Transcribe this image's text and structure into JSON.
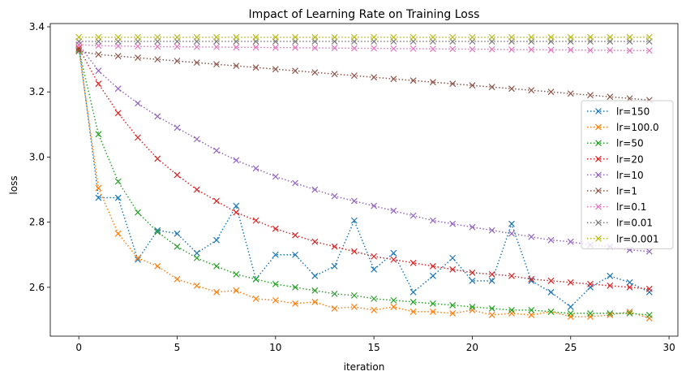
{
  "chart_data": {
    "type": "line",
    "title": "Impact of Learning Rate on Training Loss",
    "xlabel": "iteration",
    "ylabel": "loss",
    "xlim": [
      -1.45,
      30.45
    ],
    "ylim": [
      2.45,
      3.41
    ],
    "xticks": [
      0,
      5,
      10,
      15,
      20,
      25,
      30
    ],
    "yticks": [
      2.6,
      2.8,
      3.0,
      3.2,
      3.4
    ],
    "ytick_labels": [
      "2.6",
      "2.8",
      "3.0",
      "3.2",
      "3.4"
    ],
    "grid": false,
    "legend_position": "center-right",
    "marker": "x",
    "line_style": "dotted",
    "x": [
      0,
      1,
      2,
      3,
      4,
      5,
      6,
      7,
      8,
      9,
      10,
      11,
      12,
      13,
      14,
      15,
      16,
      17,
      18,
      19,
      20,
      21,
      22,
      23,
      24,
      25,
      26,
      27,
      28,
      29
    ],
    "series": [
      {
        "name": "lr=150",
        "color": "#1f77b4",
        "values": [
          3.345,
          2.875,
          2.875,
          2.685,
          2.775,
          2.765,
          2.705,
          2.745,
          2.85,
          2.625,
          2.7,
          2.7,
          2.635,
          2.665,
          2.805,
          2.655,
          2.705,
          2.585,
          2.635,
          2.69,
          2.62,
          2.62,
          2.795,
          2.62,
          2.585,
          2.54,
          2.6,
          2.635,
          2.615,
          2.585
        ]
      },
      {
        "name": "lr=100.0",
        "color": "#ff7f0e",
        "values": [
          3.33,
          2.905,
          2.765,
          2.69,
          2.665,
          2.625,
          2.605,
          2.585,
          2.59,
          2.565,
          2.56,
          2.55,
          2.555,
          2.535,
          2.54,
          2.53,
          2.54,
          2.525,
          2.525,
          2.52,
          2.53,
          2.515,
          2.52,
          2.515,
          2.525,
          2.51,
          2.51,
          2.515,
          2.525,
          2.505
        ]
      },
      {
        "name": "lr=50",
        "color": "#2ca02c",
        "values": [
          3.33,
          3.07,
          2.925,
          2.83,
          2.77,
          2.725,
          2.69,
          2.665,
          2.64,
          2.625,
          2.61,
          2.6,
          2.59,
          2.58,
          2.575,
          2.565,
          2.56,
          2.555,
          2.55,
          2.545,
          2.54,
          2.535,
          2.53,
          2.53,
          2.525,
          2.52,
          2.52,
          2.52,
          2.52,
          2.515
        ]
      },
      {
        "name": "lr=20",
        "color": "#d62728",
        "values": [
          3.335,
          3.225,
          3.135,
          3.06,
          2.995,
          2.945,
          2.9,
          2.865,
          2.83,
          2.805,
          2.78,
          2.76,
          2.74,
          2.725,
          2.71,
          2.695,
          2.685,
          2.675,
          2.665,
          2.655,
          2.645,
          2.64,
          2.635,
          2.625,
          2.62,
          2.615,
          2.61,
          2.605,
          2.6,
          2.595
        ]
      },
      {
        "name": "lr=10",
        "color": "#9467bd",
        "values": [
          3.345,
          3.265,
          3.21,
          3.165,
          3.125,
          3.09,
          3.055,
          3.02,
          2.99,
          2.965,
          2.94,
          2.92,
          2.9,
          2.88,
          2.865,
          2.85,
          2.835,
          2.82,
          2.805,
          2.795,
          2.785,
          2.775,
          2.765,
          2.755,
          2.745,
          2.74,
          2.73,
          2.725,
          2.715,
          2.71
        ]
      },
      {
        "name": "lr=1",
        "color": "#8c564b",
        "values": [
          3.325,
          3.315,
          3.31,
          3.305,
          3.3,
          3.295,
          3.29,
          3.285,
          3.28,
          3.275,
          3.27,
          3.265,
          3.26,
          3.255,
          3.25,
          3.245,
          3.24,
          3.235,
          3.23,
          3.225,
          3.22,
          3.215,
          3.21,
          3.205,
          3.2,
          3.195,
          3.19,
          3.185,
          3.18,
          3.175
        ]
      },
      {
        "name": "lr=0.1",
        "color": "#e377c2",
        "values": [
          3.345,
          3.342,
          3.341,
          3.34,
          3.339,
          3.339,
          3.338,
          3.338,
          3.337,
          3.337,
          3.336,
          3.336,
          3.335,
          3.335,
          3.334,
          3.334,
          3.333,
          3.333,
          3.332,
          3.332,
          3.331,
          3.331,
          3.33,
          3.33,
          3.329,
          3.329,
          3.328,
          3.328,
          3.327,
          3.327
        ]
      },
      {
        "name": "lr=0.01",
        "color": "#7f7f7f",
        "values": [
          3.355,
          3.355,
          3.355,
          3.355,
          3.355,
          3.355,
          3.355,
          3.355,
          3.355,
          3.355,
          3.355,
          3.355,
          3.355,
          3.355,
          3.355,
          3.355,
          3.355,
          3.355,
          3.355,
          3.355,
          3.355,
          3.355,
          3.355,
          3.355,
          3.355,
          3.355,
          3.355,
          3.355,
          3.355,
          3.355
        ]
      },
      {
        "name": "lr=0.001",
        "color": "#bcbd22",
        "values": [
          3.368,
          3.368,
          3.368,
          3.368,
          3.368,
          3.368,
          3.368,
          3.368,
          3.368,
          3.368,
          3.368,
          3.368,
          3.368,
          3.368,
          3.368,
          3.368,
          3.368,
          3.368,
          3.368,
          3.368,
          3.368,
          3.368,
          3.368,
          3.368,
          3.368,
          3.368,
          3.368,
          3.368,
          3.368,
          3.368
        ]
      }
    ]
  }
}
